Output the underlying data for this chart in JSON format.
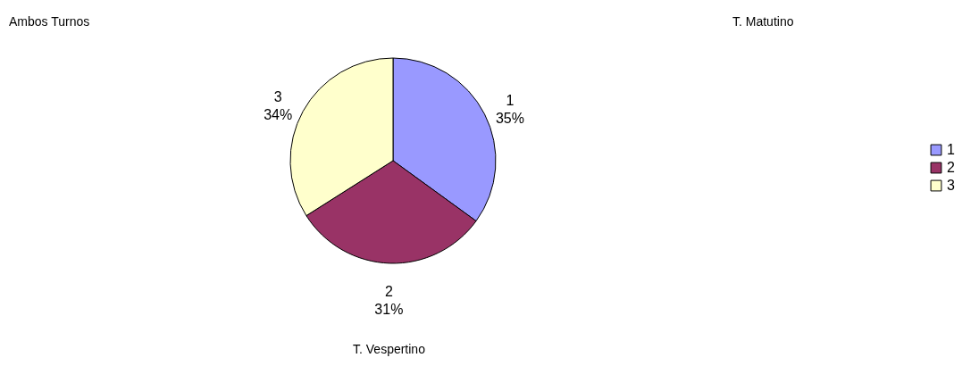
{
  "chart_data": {
    "type": "pie",
    "categories": [
      "1",
      "2",
      "3"
    ],
    "values": [
      35,
      31,
      34
    ],
    "value_labels": [
      "35%",
      "31%",
      "34%"
    ],
    "colors": [
      "#9999ff",
      "#993366",
      "#ffffcc"
    ],
    "legend": "right",
    "annotations": [
      "Ambos  Turnos",
      "T.  Matutino",
      "T. Vespertino"
    ]
  }
}
